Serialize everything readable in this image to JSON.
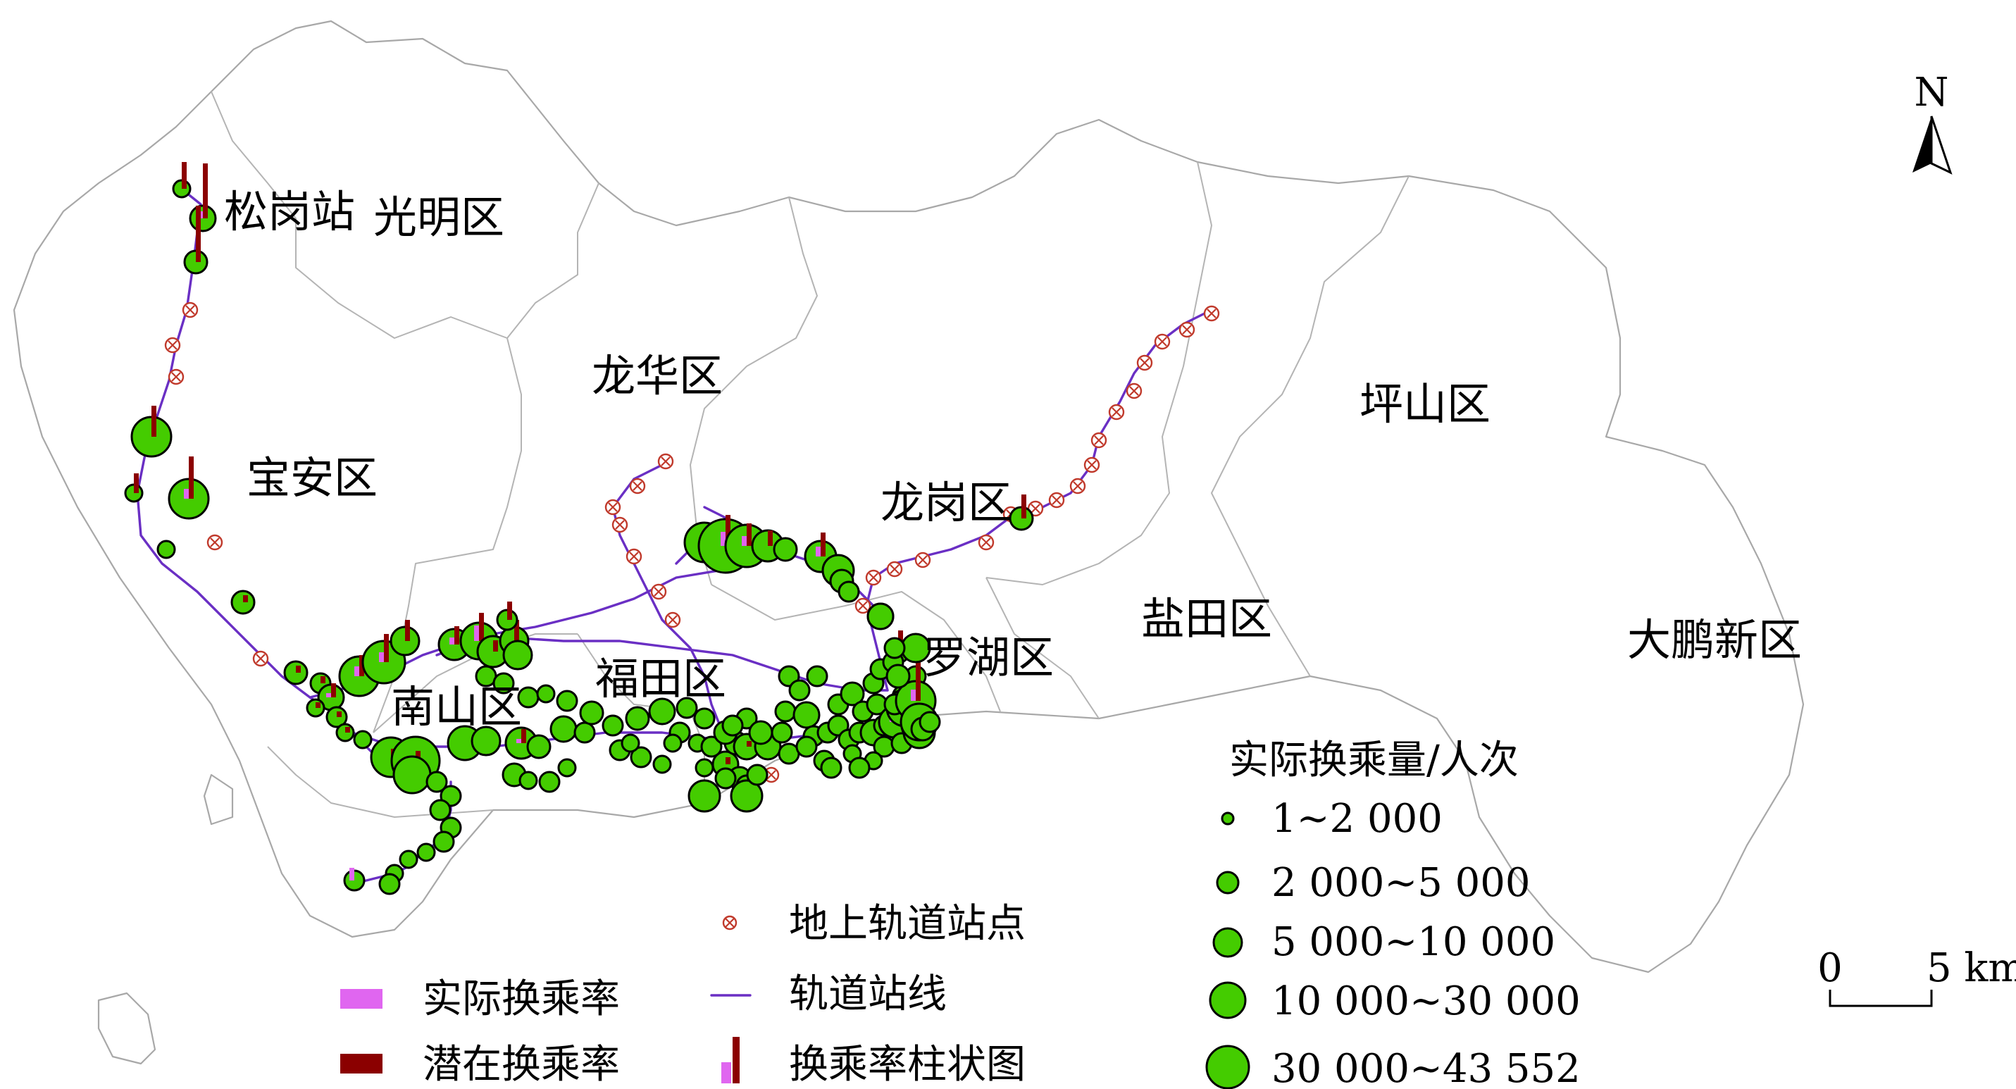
{
  "map": {
    "districts": {
      "guangming": "光明区",
      "baoan": "宝安区",
      "longhua": "龙华区",
      "longgang": "龙岗区",
      "pingshan": "坪山区",
      "yantian": "盐田区",
      "dapeng": "大鹏新区",
      "luohu": "罗湖区",
      "futian": "福田区",
      "nanshan": "南山区"
    },
    "station_label": "松岗站",
    "north_label": "N",
    "scale": {
      "start": "0",
      "end": "5 km"
    }
  },
  "legend_bars": {
    "actual": "实际换乘率",
    "potential": "潜在换乘率",
    "above_station": "地上轨道站点",
    "rail_line": "轨道站线",
    "bar_chart": "换乘率柱状图"
  },
  "legend_volume": {
    "title": "实际换乘量/人次",
    "classes": [
      "1~2 000",
      "2 000~5 000",
      "5 000~10 000",
      "10 000~30 000",
      "30 000~43 552"
    ]
  },
  "colors": {
    "station_fill": "#44cc00",
    "rail_line": "#6a2fc4",
    "above_station": "#c0392b",
    "potential_bar": "#8b0000",
    "actual_bar": "#e066f0",
    "boundary": "#a8a8a8"
  }
}
